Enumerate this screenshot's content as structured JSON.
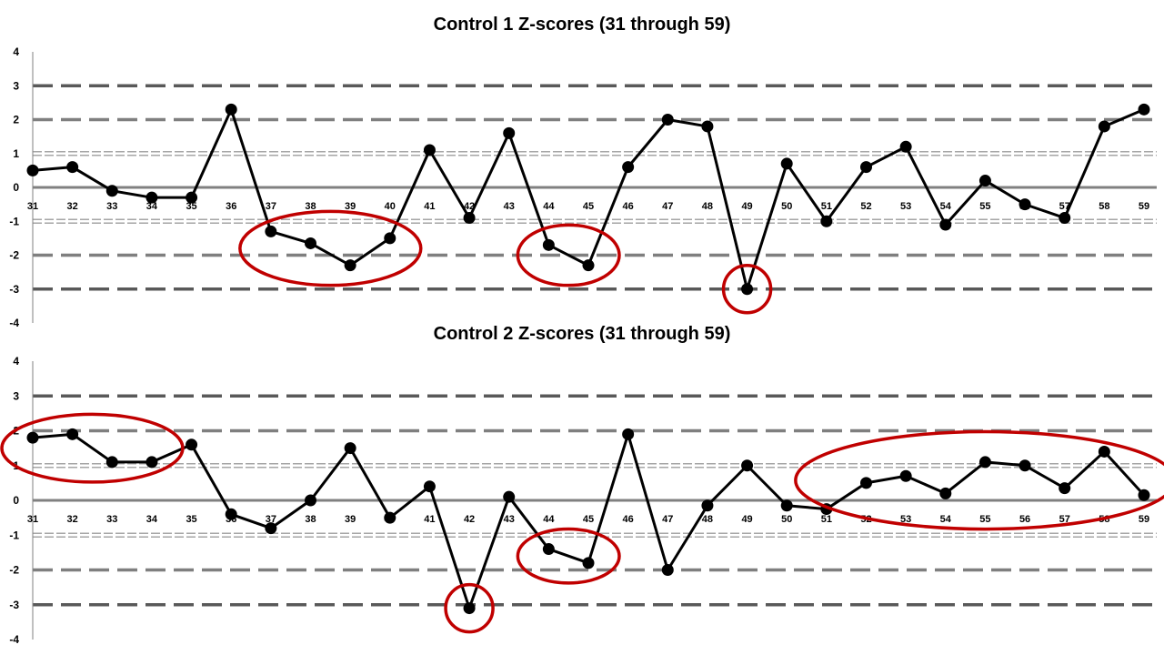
{
  "colors": {
    "series_line": "#000000",
    "marker": "#000000",
    "highlight": "#c00000",
    "limit_3sd": "#595959",
    "limit_2sd": "#7f7f7f",
    "limit_1sd": "#a6a6a6",
    "axis": "#808080"
  },
  "chart_data": [
    {
      "type": "line",
      "title": "Control 1 Z-scores (31 through 59)",
      "x": [
        31,
        32,
        33,
        34,
        35,
        36,
        37,
        38,
        39,
        40,
        41,
        42,
        43,
        44,
        45,
        46,
        47,
        48,
        49,
        50,
        51,
        52,
        53,
        54,
        55,
        56,
        57,
        58,
        59
      ],
      "xtick_labels": [
        "31",
        "32",
        "33",
        "34",
        "35",
        "36",
        "37",
        "38",
        "39",
        "40",
        "41",
        "42",
        "43",
        "44",
        "45",
        "46",
        "47",
        "48",
        "49",
        "50",
        "51",
        "52",
        "53",
        "54",
        "55",
        "56",
        "57",
        "58",
        "59"
      ],
      "ytick_labels": [
        "4",
        "3",
        "2",
        "1",
        "0",
        "-1",
        "-2",
        "-3",
        "-4"
      ],
      "ylim": [
        -4,
        4
      ],
      "yticks": [
        4,
        3,
        2,
        1,
        0,
        -1,
        -2,
        -3,
        -4
      ],
      "series": [
        {
          "values": [
            0.5,
            0.6,
            -0.1,
            -0.3,
            -0.3,
            2.3,
            -1.3,
            -1.65,
            -2.3,
            -1.5,
            1.1,
            -0.9,
            1.6,
            -1.7,
            -2.3,
            0.6,
            2.0,
            1.8,
            -3.0,
            0.7,
            -1.0,
            0.6,
            1.2,
            -1.1,
            0.2,
            -0.5,
            -0.9,
            1.8,
            2.3
          ]
        }
      ],
      "control_limits": [
        3,
        2,
        1,
        -1,
        -2,
        -3
      ],
      "highlight_groups": [
        {
          "points": [
            37,
            38,
            39,
            40
          ]
        },
        {
          "points": [
            44,
            45
          ]
        },
        {
          "points": [
            49
          ]
        }
      ]
    },
    {
      "type": "line",
      "title": "Control 2 Z-scores (31 through 59)",
      "x": [
        31,
        32,
        33,
        34,
        35,
        36,
        37,
        38,
        39,
        40,
        41,
        42,
        43,
        44,
        45,
        46,
        47,
        48,
        49,
        50,
        51,
        52,
        53,
        54,
        55,
        56,
        57,
        58,
        59
      ],
      "xtick_labels": [
        "31",
        "32",
        "33",
        "34",
        "35",
        "36",
        "37",
        "38",
        "39",
        "40",
        "41",
        "42",
        "43",
        "44",
        "45",
        "46",
        "47",
        "48",
        "49",
        "50",
        "51",
        "52",
        "53",
        "54",
        "55",
        "56",
        "57",
        "58",
        "59"
      ],
      "ytick_labels": [
        "4",
        "3",
        "2",
        "1",
        "0",
        "-1",
        "-2",
        "-3",
        "-4"
      ],
      "ylim": [
        -4,
        4
      ],
      "yticks": [
        4,
        3,
        2,
        1,
        0,
        -1,
        -2,
        -3,
        -4
      ],
      "series": [
        {
          "values": [
            1.8,
            1.9,
            1.1,
            1.1,
            1.6,
            -0.4,
            -0.8,
            0.0,
            1.5,
            -0.5,
            0.4,
            -3.1,
            0.1,
            -1.4,
            -1.8,
            1.9,
            -2.0,
            -0.15,
            1.0,
            -0.15,
            -0.25,
            0.5,
            0.7,
            0.2,
            1.1,
            1.0,
            0.35,
            1.4,
            0.15
          ]
        }
      ],
      "control_limits": [
        3,
        2,
        1,
        -1,
        -2,
        -3
      ],
      "highlight_groups": [
        {
          "points": [
            31,
            32,
            33,
            34
          ]
        },
        {
          "points": [
            42
          ]
        },
        {
          "points": [
            44,
            45
          ]
        },
        {
          "points": [
            51,
            52,
            53,
            54,
            55,
            56,
            57,
            58,
            59
          ]
        }
      ]
    }
  ]
}
